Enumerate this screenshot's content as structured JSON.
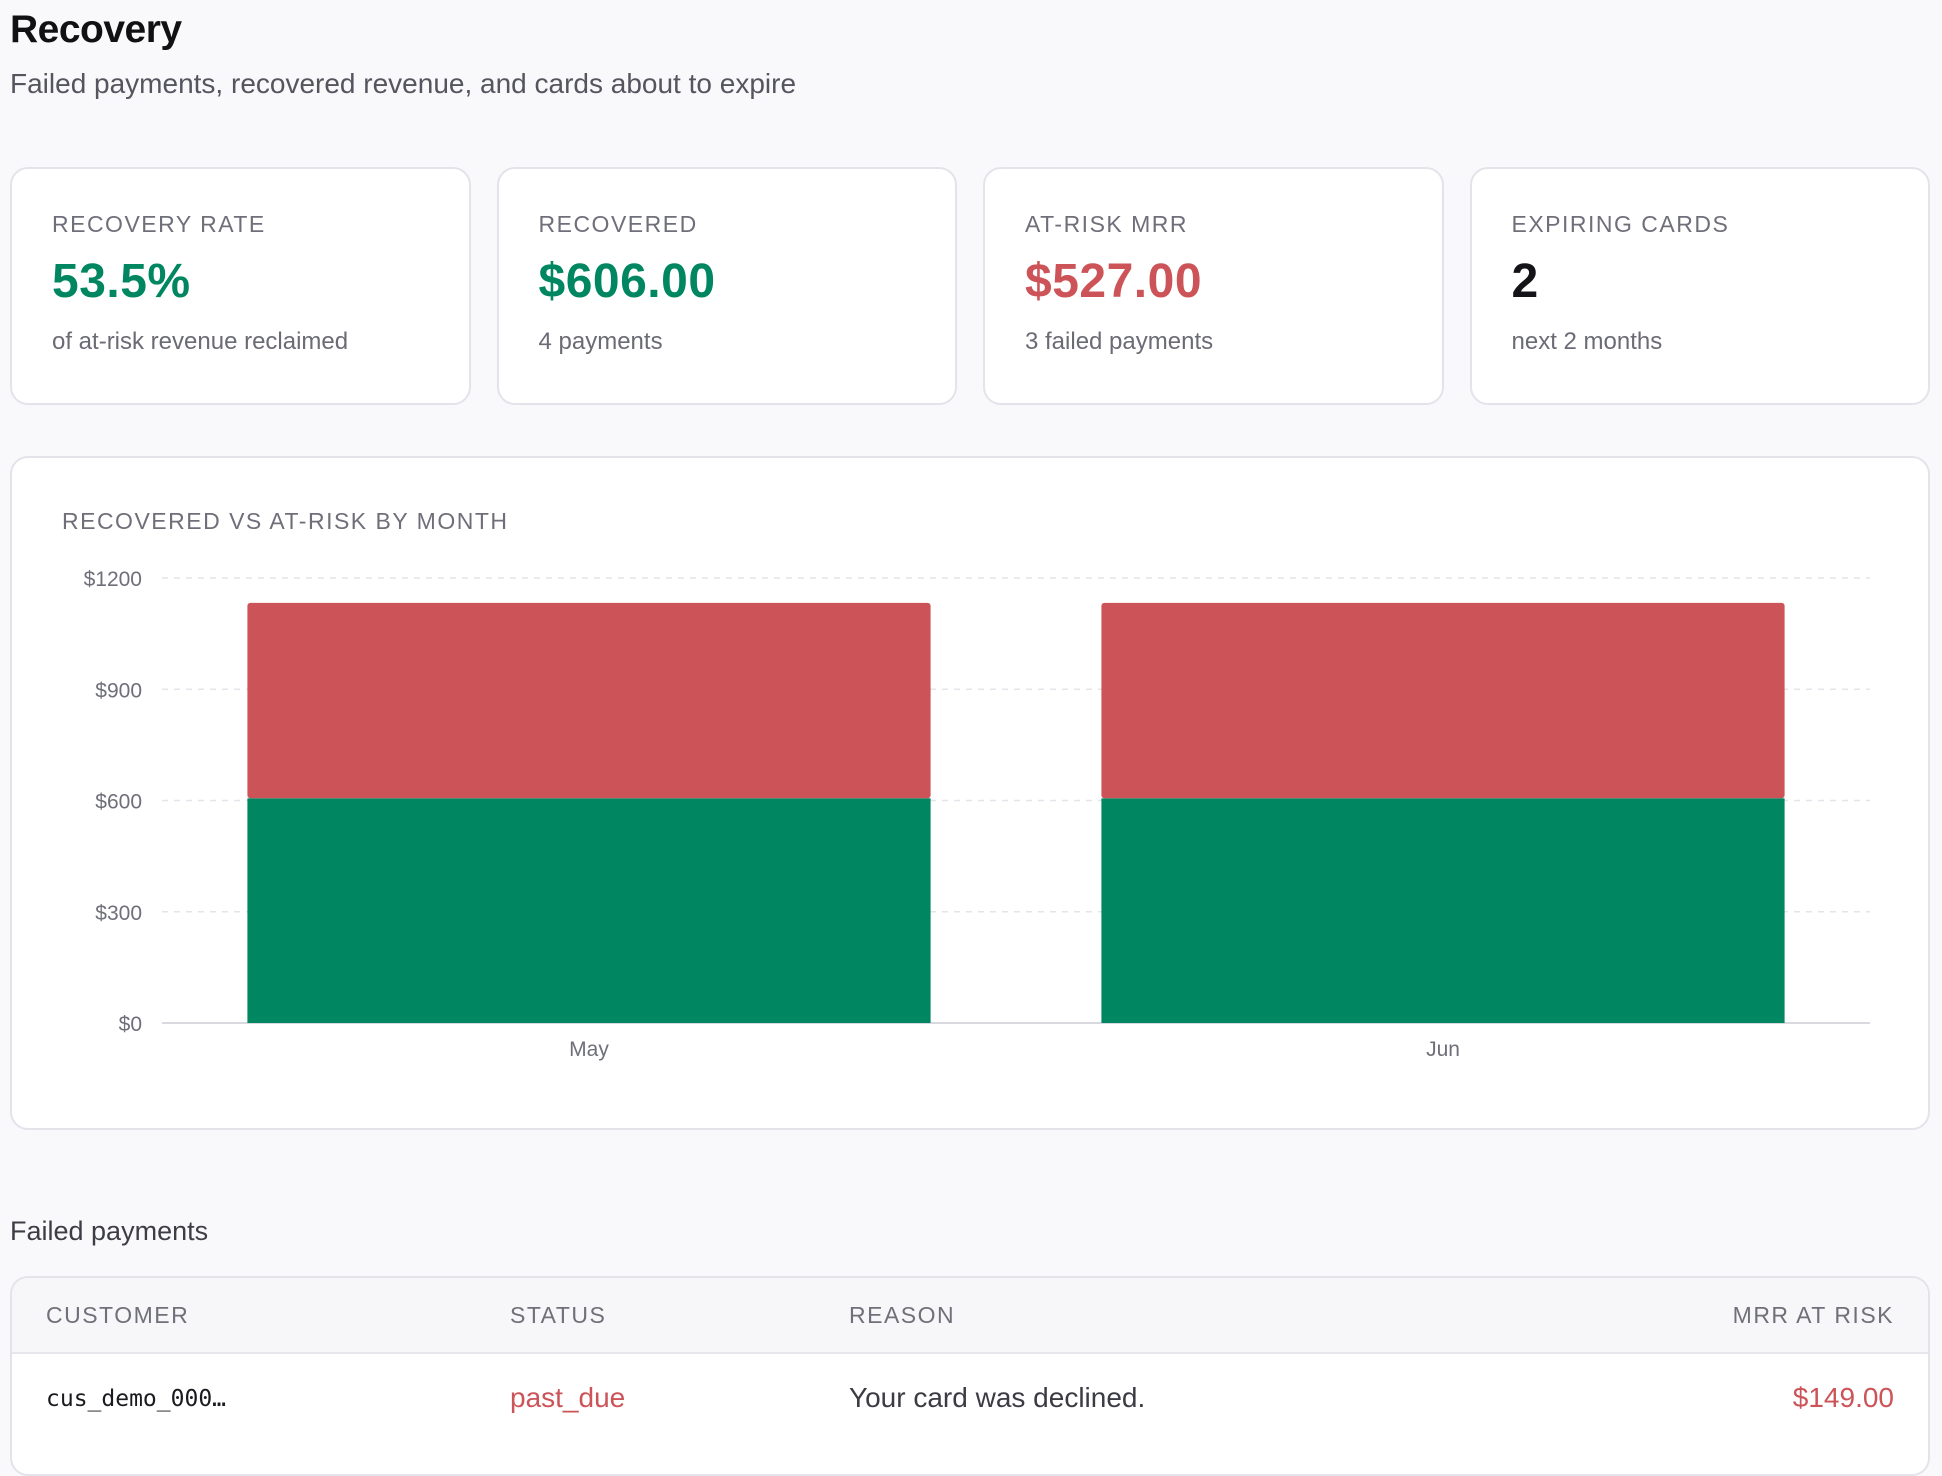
{
  "header": {
    "title": "Recovery",
    "subtitle": "Failed payments, recovered revenue, and cards about to expire"
  },
  "kpis": [
    {
      "label": "RECOVERY RATE",
      "value": "53.5%",
      "sub": "of at-risk revenue reclaimed",
      "tone": "green"
    },
    {
      "label": "RECOVERED",
      "value": "$606.00",
      "sub": "4 payments",
      "tone": "green"
    },
    {
      "label": "AT-RISK MRR",
      "value": "$527.00",
      "sub": "3 failed payments",
      "tone": "red"
    },
    {
      "label": "EXPIRING CARDS",
      "value": "2",
      "sub": "next 2 months",
      "tone": "dark"
    }
  ],
  "colors": {
    "recovered": "#008660",
    "at_risk": "#cc5357",
    "grid": "#e4e4ea",
    "tick": "#6f6f7a"
  },
  "chart_data": {
    "type": "bar",
    "stacked": true,
    "title": "RECOVERED VS AT-RISK BY MONTH",
    "categories": [
      "May",
      "Jun"
    ],
    "series": [
      {
        "values": [
          606,
          606
        ],
        "color": "#008660"
      },
      {
        "values": [
          527,
          527
        ],
        "color": "#cc5357"
      }
    ],
    "ylim": [
      0,
      1200
    ],
    "yticks": [
      0,
      300,
      600,
      900,
      1200
    ],
    "ytick_labels": [
      "$0",
      "$300",
      "$600",
      "$900",
      "$1200"
    ],
    "grid": true,
    "legend": "none"
  },
  "failed_payments": {
    "title": "Failed payments",
    "columns": [
      "CUSTOMER",
      "STATUS",
      "REASON",
      "MRR AT RISK"
    ],
    "rows": [
      {
        "customer": "cus_demo_000…",
        "status": "past_due",
        "reason": "Your card was declined.",
        "mrr": "$149.00"
      }
    ]
  }
}
